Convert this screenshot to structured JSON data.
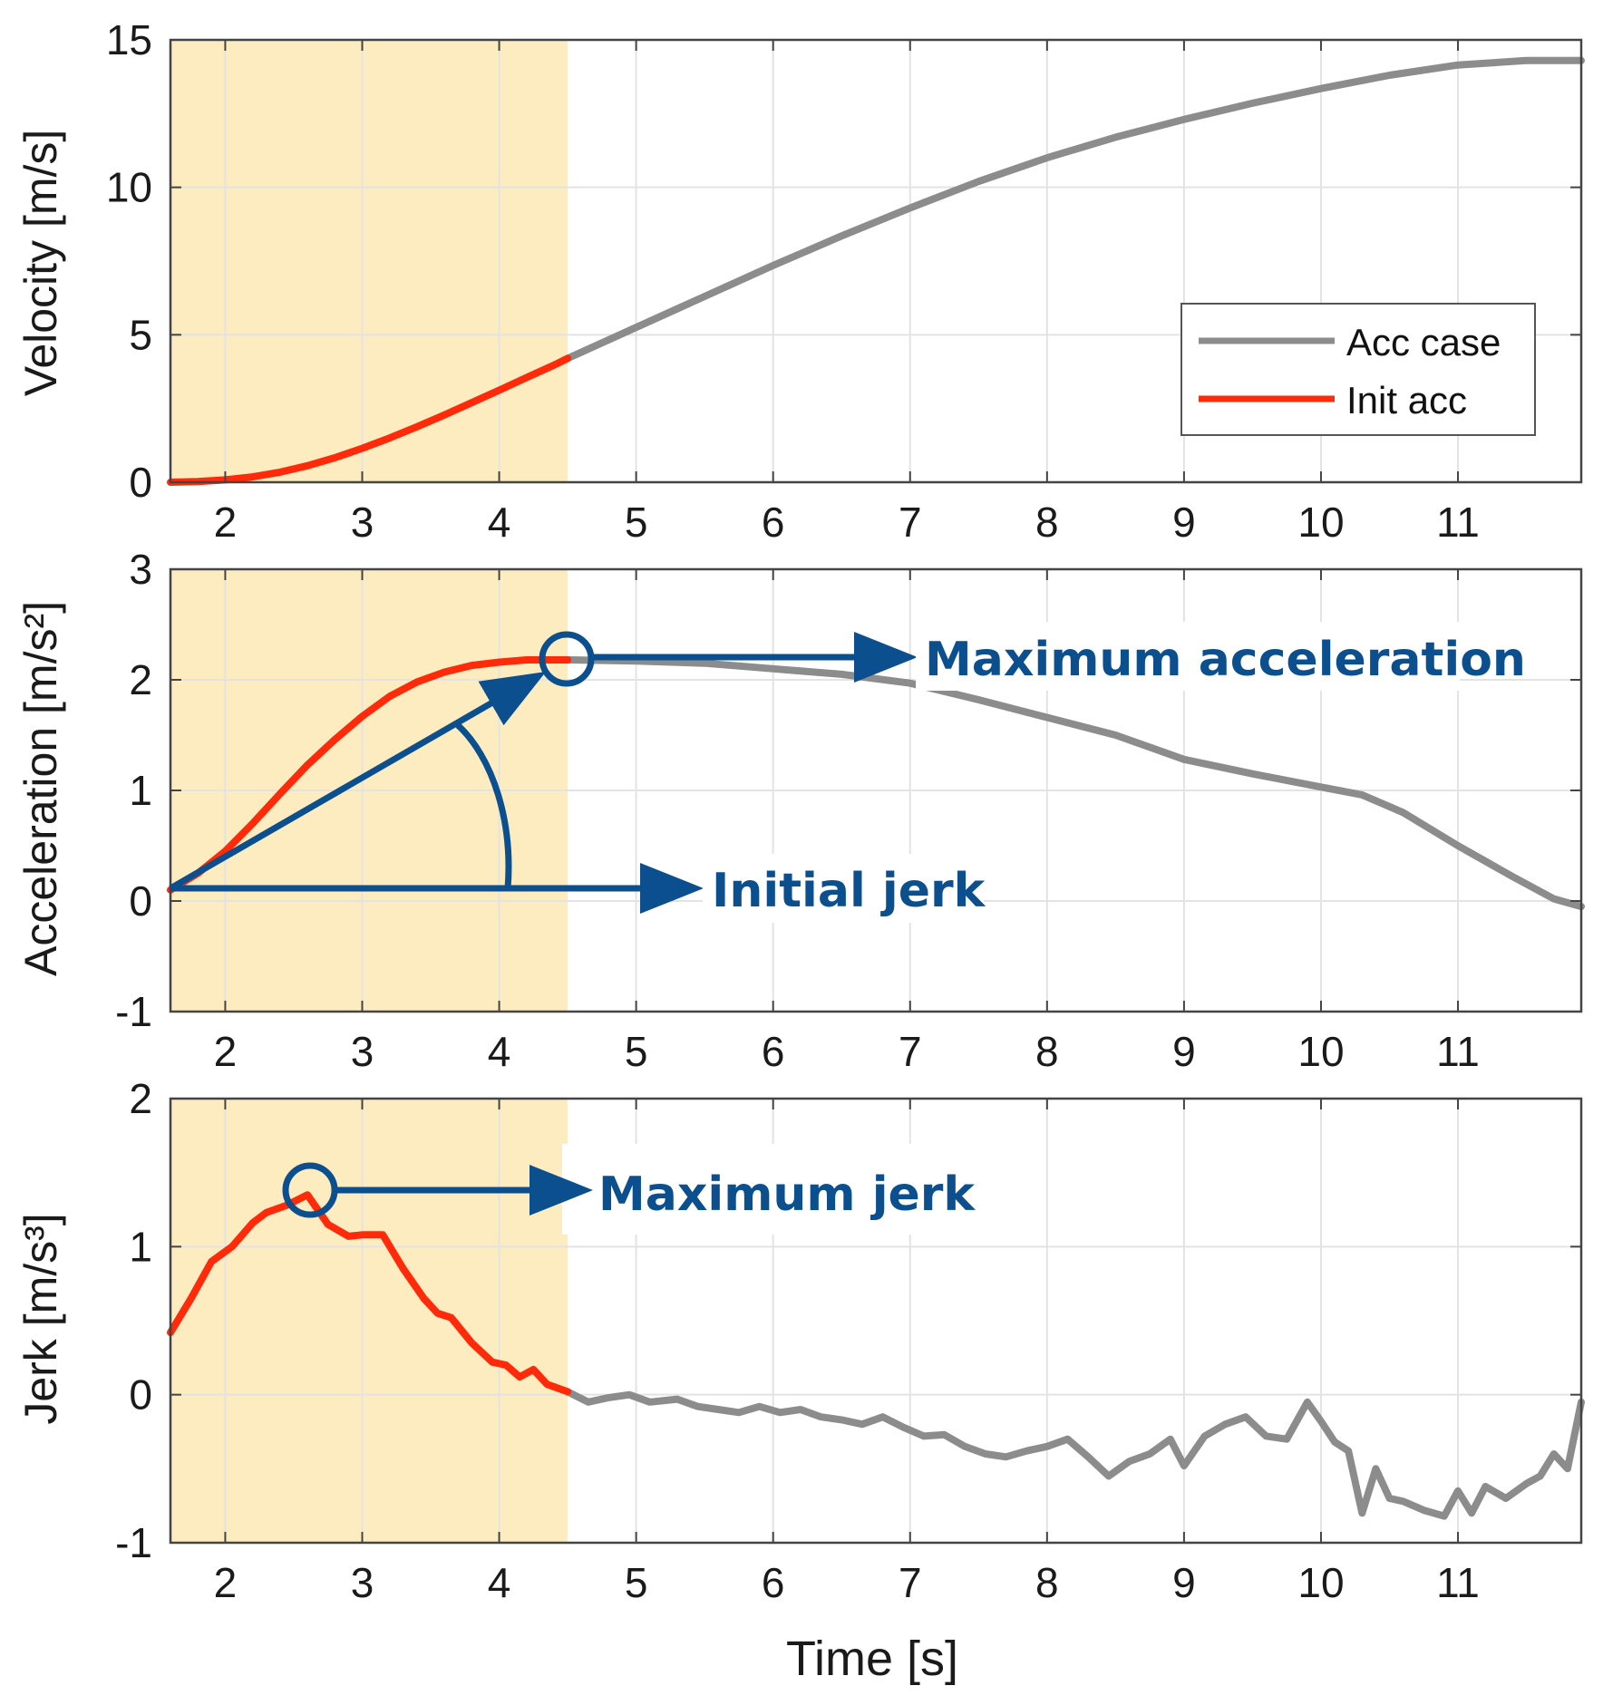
{
  "colors": {
    "acc_case": "#8c8c8c",
    "init_acc": "#ff2a0a",
    "highlight": "#fcecc0",
    "annotation": "#0b4f8f",
    "grid": "#e3e3e3",
    "axes": "#444444"
  },
  "chart_data": [
    {
      "type": "line",
      "id": "velocity",
      "ylabel": "Velocity [m/s]",
      "xlim": [
        1.6,
        11.9
      ],
      "ylim": [
        0,
        15
      ],
      "yticks": [
        0,
        5,
        10,
        15
      ],
      "xticks": [
        2,
        3,
        4,
        5,
        6,
        7,
        8,
        9,
        10,
        11
      ],
      "highlight_x": [
        1.6,
        4.5
      ],
      "legend": {
        "placement": "middle-right",
        "entries": [
          "Acc case",
          "Init acc"
        ]
      },
      "series": [
        {
          "name": "Init acc",
          "x": [
            1.6,
            1.8,
            2.0,
            2.2,
            2.4,
            2.6,
            2.8,
            3.0,
            3.2,
            3.4,
            3.6,
            3.8,
            4.0,
            4.2,
            4.4,
            4.5
          ],
          "y": [
            0.0,
            0.02,
            0.08,
            0.18,
            0.34,
            0.56,
            0.83,
            1.15,
            1.5,
            1.88,
            2.28,
            2.7,
            3.12,
            3.55,
            3.97,
            4.2
          ]
        },
        {
          "name": "Acc case",
          "x": [
            4.5,
            5.0,
            5.5,
            6.0,
            6.5,
            7.0,
            7.5,
            8.0,
            8.5,
            9.0,
            9.5,
            10.0,
            10.5,
            11.0,
            11.5,
            11.9
          ],
          "y": [
            4.2,
            5.25,
            6.3,
            7.35,
            8.35,
            9.3,
            10.2,
            11.0,
            11.7,
            12.3,
            12.85,
            13.35,
            13.8,
            14.15,
            14.3,
            14.3
          ]
        }
      ]
    },
    {
      "type": "line",
      "id": "acceleration",
      "ylabel": "Acceleration [m/s²]",
      "xlim": [
        1.6,
        11.9
      ],
      "ylim": [
        -1,
        3
      ],
      "yticks": [
        -1,
        0,
        1,
        2,
        3
      ],
      "xticks": [
        2,
        3,
        4,
        5,
        6,
        7,
        8,
        9,
        10,
        11
      ],
      "highlight_x": [
        1.6,
        4.5
      ],
      "series": [
        {
          "name": "Init acc",
          "x": [
            1.6,
            1.8,
            2.0,
            2.2,
            2.4,
            2.6,
            2.8,
            3.0,
            3.2,
            3.4,
            3.6,
            3.8,
            4.0,
            4.2,
            4.4,
            4.5
          ],
          "y": [
            0.1,
            0.25,
            0.45,
            0.7,
            0.97,
            1.23,
            1.46,
            1.67,
            1.85,
            1.98,
            2.07,
            2.13,
            2.16,
            2.18,
            2.18,
            2.18
          ]
        },
        {
          "name": "Acc case",
          "x": [
            4.5,
            5.0,
            5.5,
            6.0,
            6.5,
            7.0,
            7.5,
            8.0,
            8.5,
            9.0,
            9.5,
            10.0,
            10.3,
            10.6,
            11.0,
            11.4,
            11.7,
            11.9
          ],
          "y": [
            2.18,
            2.17,
            2.15,
            2.1,
            2.05,
            1.97,
            1.82,
            1.66,
            1.5,
            1.28,
            1.15,
            1.03,
            0.96,
            0.8,
            0.5,
            0.22,
            0.02,
            -0.05
          ]
        }
      ],
      "annotations": [
        "Maximum acceleration",
        "Initial jerk"
      ]
    },
    {
      "type": "line",
      "id": "jerk",
      "ylabel": "Jerk [m/s³]",
      "xlabel": "Time [s]",
      "xlim": [
        1.6,
        11.9
      ],
      "ylim": [
        -1,
        2
      ],
      "yticks": [
        -1,
        0,
        1,
        2
      ],
      "xticks": [
        2,
        3,
        4,
        5,
        6,
        7,
        8,
        9,
        10,
        11
      ],
      "highlight_x": [
        1.6,
        4.5
      ],
      "series": [
        {
          "name": "Init acc",
          "x": [
            1.6,
            1.75,
            1.9,
            2.05,
            2.2,
            2.3,
            2.45,
            2.6,
            2.75,
            2.9,
            3.0,
            3.15,
            3.3,
            3.45,
            3.55,
            3.65,
            3.8,
            3.95,
            4.05,
            4.15,
            4.25,
            4.35,
            4.5
          ],
          "y": [
            0.42,
            0.65,
            0.9,
            1.0,
            1.16,
            1.23,
            1.28,
            1.35,
            1.15,
            1.07,
            1.08,
            1.08,
            0.85,
            0.65,
            0.55,
            0.52,
            0.35,
            0.22,
            0.2,
            0.12,
            0.17,
            0.07,
            0.02
          ]
        },
        {
          "name": "Acc case",
          "x": [
            4.5,
            4.65,
            4.8,
            4.95,
            5.1,
            5.3,
            5.45,
            5.6,
            5.75,
            5.9,
            6.05,
            6.2,
            6.35,
            6.5,
            6.65,
            6.8,
            6.95,
            7.1,
            7.25,
            7.4,
            7.55,
            7.7,
            7.85,
            8.0,
            8.15,
            8.3,
            8.45,
            8.6,
            8.75,
            8.9,
            9.0,
            9.15,
            9.3,
            9.45,
            9.6,
            9.75,
            9.9,
            10.0,
            10.1,
            10.2,
            10.3,
            10.4,
            10.5,
            10.6,
            10.75,
            10.9,
            11.0,
            11.1,
            11.2,
            11.35,
            11.5,
            11.6,
            11.7,
            11.8,
            11.9
          ],
          "y": [
            0.02,
            -0.05,
            -0.02,
            0.0,
            -0.05,
            -0.03,
            -0.08,
            -0.1,
            -0.12,
            -0.08,
            -0.12,
            -0.1,
            -0.15,
            -0.17,
            -0.2,
            -0.15,
            -0.22,
            -0.28,
            -0.27,
            -0.35,
            -0.4,
            -0.42,
            -0.38,
            -0.35,
            -0.3,
            -0.42,
            -0.55,
            -0.45,
            -0.4,
            -0.3,
            -0.48,
            -0.28,
            -0.2,
            -0.15,
            -0.28,
            -0.3,
            -0.05,
            -0.18,
            -0.32,
            -0.38,
            -0.8,
            -0.5,
            -0.7,
            -0.72,
            -0.78,
            -0.82,
            -0.65,
            -0.8,
            -0.62,
            -0.7,
            -0.6,
            -0.55,
            -0.4,
            -0.5,
            -0.05
          ]
        }
      ],
      "annotations": [
        "Maximum jerk"
      ]
    }
  ]
}
